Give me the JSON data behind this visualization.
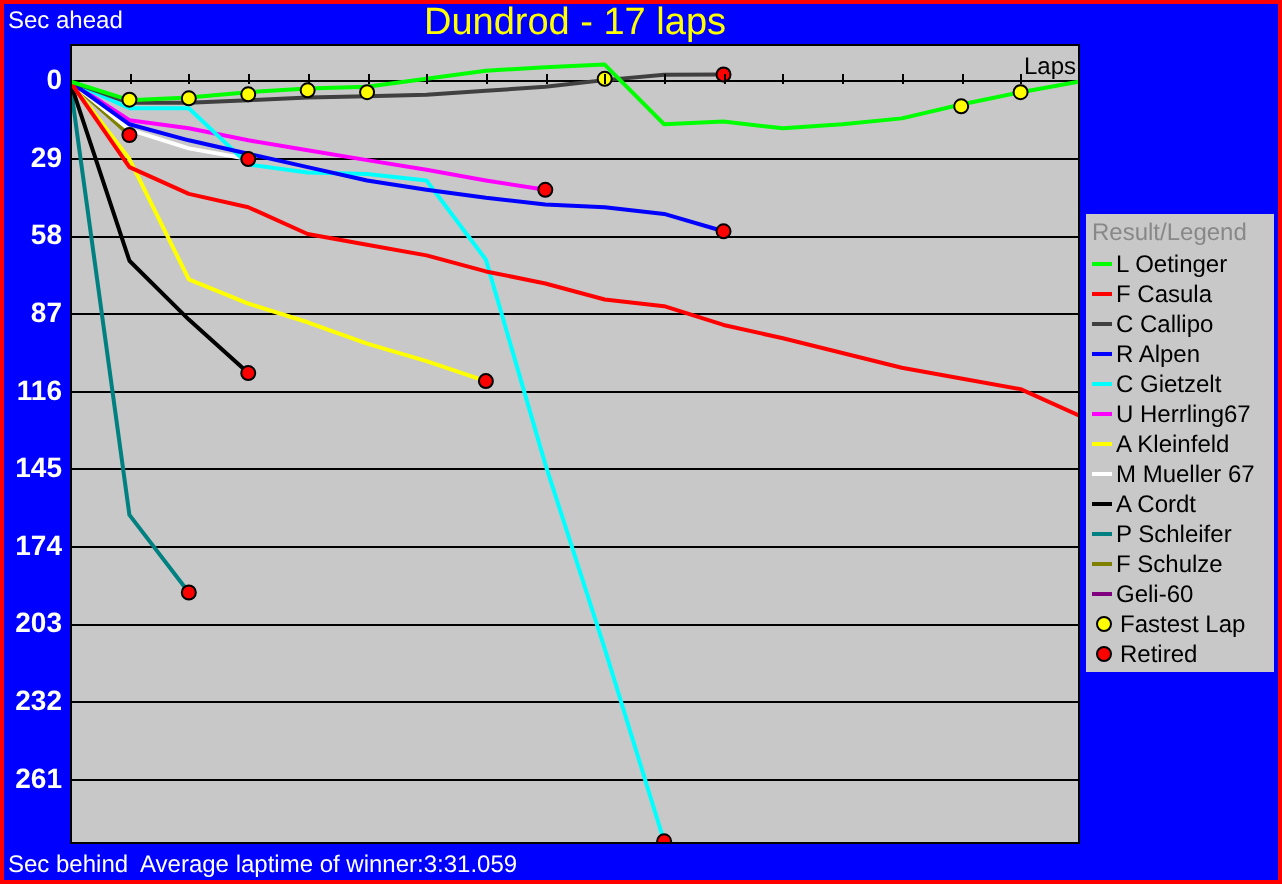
{
  "chart_data": {
    "type": "line",
    "title": "Dundrod - 17 laps",
    "xlabel": "Laps",
    "legend_title": "Result/Legend",
    "annotations": [
      "Sec ahead",
      "Sec behind",
      "Average laptime of winner:3:31.059"
    ],
    "categories": [
      null,
      null,
      null,
      null,
      null,
      null,
      null,
      null,
      null,
      null,
      null,
      null,
      null,
      null,
      null,
      null,
      null,
      null
    ],
    "ylim": [
      285,
      -14
    ],
    "yticks": [
      0,
      29,
      58,
      87,
      116,
      145,
      174,
      203,
      232,
      261
    ],
    "tick_labels": "y",
    "grid": "y",
    "legend": "right",
    "series": [
      {
        "name": "L Oetinger",
        "color": "#00ff00",
        "values": [
          0,
          7,
          6,
          4,
          2.6,
          2,
          -1,
          -4,
          -5.3,
          -6.3,
          16,
          15,
          17.5,
          16,
          13.8,
          8.6,
          4,
          0
        ]
      },
      {
        "name": "F Casula",
        "color": "#ff0000",
        "values": [
          0,
          32,
          42,
          47,
          57,
          61,
          65,
          71,
          75.5,
          81.5,
          84,
          91,
          96,
          101.5,
          107,
          111,
          115,
          125
        ]
      },
      {
        "name": "C Callipo",
        "color": "#404040",
        "values": [
          0,
          8,
          8,
          7,
          6,
          5.5,
          5,
          3.5,
          2,
          -0.5,
          -2.5,
          -2.6,
          null,
          null,
          null,
          null,
          null,
          null
        ]
      },
      {
        "name": "R Alpen",
        "color": "#0000ff",
        "values": [
          0,
          16,
          22,
          27,
          32,
          37,
          40.5,
          43.5,
          46,
          47,
          49.5,
          56,
          null,
          null,
          null,
          null,
          null,
          null
        ]
      },
      {
        "name": "C Gietzelt",
        "color": "#00ffff",
        "values": [
          0,
          10,
          10,
          31,
          34,
          34.6,
          37,
          66.6,
          143,
          212,
          284,
          null,
          null,
          null,
          null,
          null,
          null,
          null
        ]
      },
      {
        "name": "U Herrling67",
        "color": "#ff00ff",
        "values": [
          0,
          14.5,
          17.5,
          22,
          25.7,
          29.4,
          33,
          37,
          40.5,
          null,
          null,
          null,
          null,
          null,
          null,
          null,
          null,
          null
        ]
      },
      {
        "name": "A Kleinfeld",
        "color": "#ffff00",
        "values": [
          0,
          29,
          74,
          83,
          90,
          98,
          104.5,
          112,
          null,
          null,
          null,
          null,
          null,
          null,
          null,
          null,
          null,
          null
        ]
      },
      {
        "name": "M Mueller 67",
        "color": "#ffffff",
        "values": [
          0,
          18,
          25,
          29,
          null,
          null,
          null,
          null,
          null,
          null,
          null,
          null,
          null,
          null,
          null,
          null,
          null,
          null
        ]
      },
      {
        "name": "A Cordt",
        "color": "#000000",
        "values": [
          0,
          67,
          89,
          109,
          null,
          null,
          null,
          null,
          null,
          null,
          null,
          null,
          null,
          null,
          null,
          null,
          null,
          null
        ]
      },
      {
        "name": "P Schleifer",
        "color": "#008080",
        "values": [
          0,
          162,
          191,
          null,
          null,
          null,
          null,
          null,
          null,
          null,
          null,
          null,
          null,
          null,
          null,
          null,
          null,
          null
        ]
      },
      {
        "name": "F Schulze",
        "color": "#808000",
        "values": [
          0,
          20,
          null,
          null,
          null,
          null,
          null,
          null,
          null,
          null,
          null,
          null,
          null,
          null,
          null,
          null,
          null,
          null
        ]
      },
      {
        "name": "Geli-60",
        "color": "#800080",
        "values": [
          null,
          null,
          null,
          null,
          null,
          null,
          null,
          null,
          null,
          null,
          null,
          null,
          null,
          null,
          null,
          null,
          null,
          null
        ]
      },
      {
        "name": "Fastest Lap",
        "type": "scatter",
        "marker": "circle",
        "color": "#ffff00",
        "values": [
          null,
          6.8,
          6.3,
          4.8,
          3.3,
          4,
          null,
          null,
          null,
          -1,
          null,
          null,
          null,
          null,
          null,
          9.3,
          4,
          null
        ]
      },
      {
        "name": "Retired",
        "type": "scatter",
        "marker": "circle",
        "color": "#ff0000",
        "values": [
          null,
          20,
          191,
          29,
          null,
          null,
          null,
          112,
          40.5,
          null,
          284,
          56,
          null,
          null,
          null,
          null,
          null,
          null
        ]
      },
      {
        "type": "scatter",
        "marker": "circle",
        "color": "#ff0000",
        "values": [
          null,
          null,
          null,
          109,
          null,
          null,
          null,
          null,
          null,
          null,
          null,
          -2.6,
          null,
          null,
          null,
          null,
          null,
          null
        ]
      }
    ]
  }
}
